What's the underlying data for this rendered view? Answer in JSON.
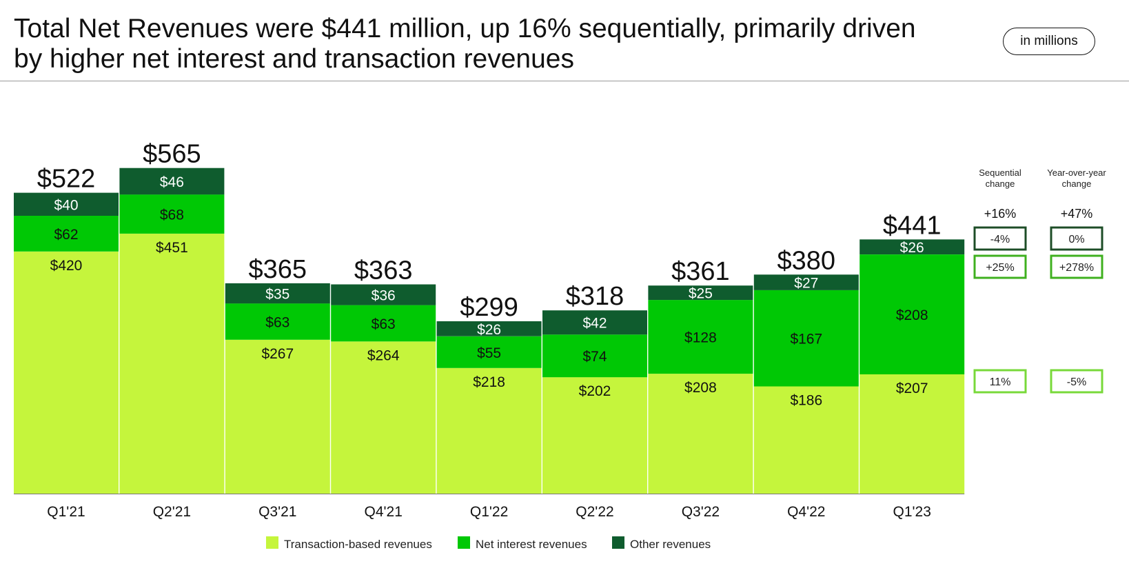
{
  "header": {
    "title_line1": "Total Net Revenues were $441 million, up 16% sequentially, primarily driven",
    "title_line2": "by higher net interest and transaction revenues",
    "unit_label": "in millions"
  },
  "colors": {
    "transaction": "#c5f53c",
    "net_interest": "#00c805",
    "other": "#0f5c2e",
    "box_dark": "#1d4d27",
    "box_mid": "#3fb01f",
    "box_light": "#78d93a"
  },
  "chart_data": {
    "type": "bar",
    "stacked": true,
    "categories": [
      "Q1'21",
      "Q2'21",
      "Q3'21",
      "Q4'21",
      "Q1'22",
      "Q2'22",
      "Q3'22",
      "Q4'22",
      "Q1'23"
    ],
    "series": [
      {
        "name": "Transaction-based revenues",
        "values": [
          420,
          451,
          267,
          264,
          218,
          202,
          208,
          186,
          207
        ],
        "labels": [
          "$420",
          "$451",
          "$267",
          "$264",
          "$218",
          "$202",
          "$208",
          "$186",
          "$207"
        ]
      },
      {
        "name": "Net interest revenues",
        "values": [
          62,
          68,
          63,
          63,
          55,
          74,
          128,
          167,
          208
        ],
        "labels": [
          "$62",
          "$68",
          "$63",
          "$63",
          "$55",
          "$74",
          "$128",
          "$167",
          "$208"
        ]
      },
      {
        "name": "Other revenues",
        "values": [
          40,
          46,
          35,
          36,
          26,
          42,
          25,
          27,
          26
        ],
        "labels": [
          "$40",
          "$46",
          "$35",
          "$36",
          "$26",
          "$42",
          "$25",
          "$27",
          "$26"
        ]
      }
    ],
    "totals": [
      522,
      565,
      365,
      363,
      299,
      318,
      361,
      380,
      441
    ],
    "total_labels": [
      "$522",
      "$565",
      "$365",
      "$363",
      "$299",
      "$318",
      "$361",
      "$380",
      "$441"
    ],
    "ylim": [
      0,
      600
    ],
    "grid": false,
    "legend_position": "bottom"
  },
  "changes": {
    "sequential_header": [
      "Sequential",
      "change"
    ],
    "yoy_header": [
      "Year-over-year",
      "change"
    ],
    "sequential": {
      "total": "+16%",
      "other": "-4%",
      "net_interest": "+25%",
      "transaction": "11%"
    },
    "yoy": {
      "total": "+47%",
      "other": "0%",
      "net_interest": "+278%",
      "transaction": "-5%"
    }
  }
}
